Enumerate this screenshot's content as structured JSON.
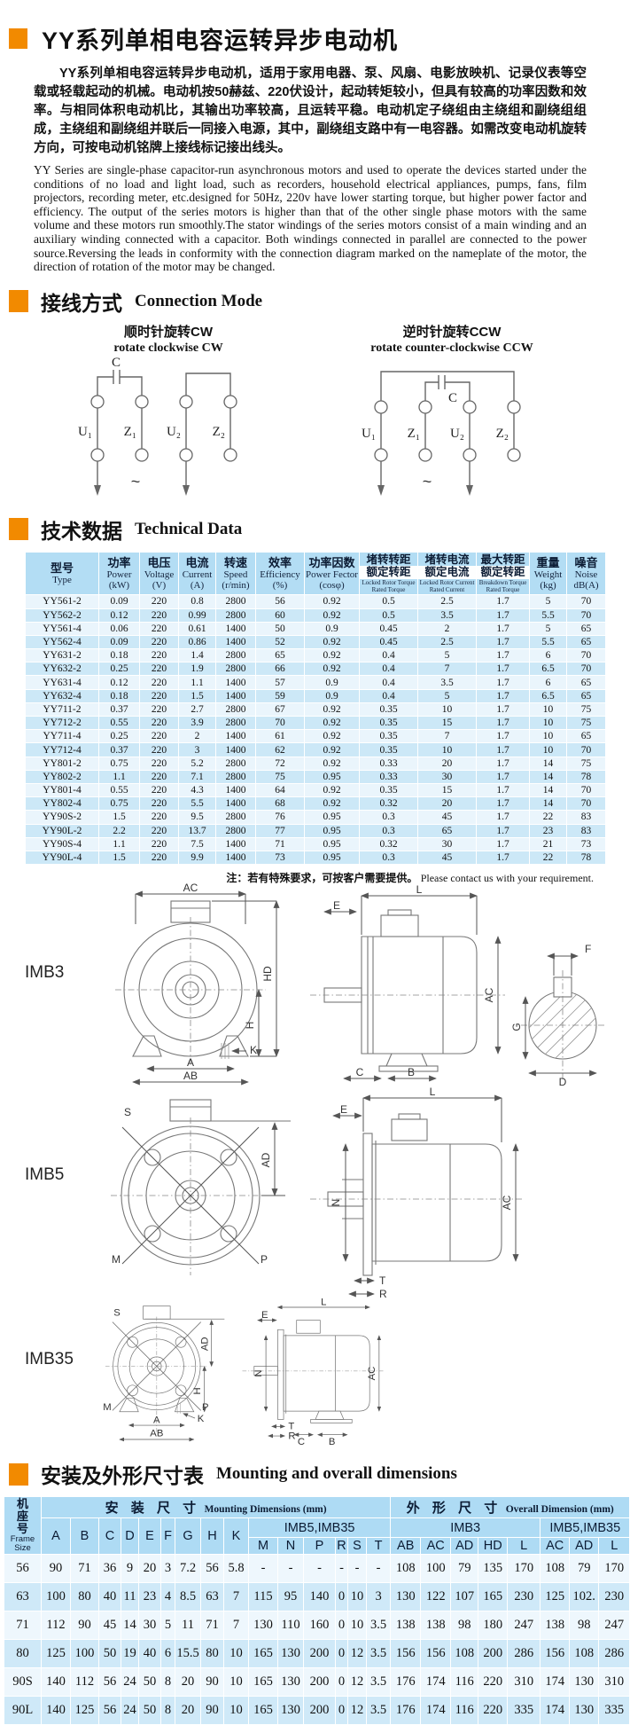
{
  "colors": {
    "accent_orange": "#f28a00",
    "table_header_blue": "#b3ddf4",
    "table_row_light": "#eaf5fc",
    "table_row_blue": "#cce8f7",
    "type_col_blue": "#a6d5ef"
  },
  "page": {
    "title": "YY系列单相电容运转异步电动机",
    "para_cn": "YY系列单相电容运转异步电动机，适用于家用电器、泵、风扇、电影放映机、记录仪表等空载或轻载起动的机械。电动机按50赫兹、220伏设计，起动转矩较小，但具有较高的功率因数和效率。与相同体积电动机比，其输出功率较高，且运转平稳。电动机定子绕组由主绕组和副绕组组成，主绕组和副绕组并联后一同接入电源，其中，副绕组支路中有一电容器。如需改变电动机旋转方向，可按电动机铭牌上接线标记接出线头。",
    "para_en": "YY Series are single-phase capacitor-run asynchronous motors and used to operate the devices started under the conditions of no load and light load, such as recorders, household electrical appliances, pumps, fans, film projectors, recording meter, etc.designed for 50Hz, 220v have lower starting torque, but higher power factor and efficiency. The output of the series motors is higher than that of the other single phase motors with the same volume and these motors run smoothly.The stator windings of the series motors consist of a main winding and an auxiliary winding connected with a capacitor. Both windings connected in parallel are connected to the power source.Reversing the leads in conformity with the connection diagram marked on the nameplate of the motor, the direction of rotation of the motor may be changed."
  },
  "sections": {
    "connection": {
      "cn": "接线方式",
      "en": "Connection Mode"
    },
    "technical": {
      "cn": "技术数据",
      "en": "Technical Data"
    },
    "mounting": {
      "cn": "安装及外形尺寸表",
      "en": "Mounting and overall dimensions"
    }
  },
  "connection": {
    "cw": {
      "caption_cn": "顺时针旋转CW",
      "caption_en": "rotate clockwise CW",
      "terminals": [
        "U₁",
        "Z₁",
        "U₂",
        "Z₂"
      ],
      "capacitor_label": "C",
      "ac_symbol": "~"
    },
    "ccw": {
      "caption_cn": "逆时针旋转CCW",
      "caption_en": "rotate counter-clockwise CCW",
      "terminals": [
        "U₁",
        "Z₁",
        "U₂",
        "Z₂"
      ],
      "capacitor_label": "C",
      "ac_symbol": "~"
    }
  },
  "tech_table": {
    "cols": [
      {
        "cn": "型号",
        "en": "Type"
      },
      {
        "cn": "功率",
        "en": "Power",
        "unit": "(kW)"
      },
      {
        "cn": "电压",
        "en": "Voltage",
        "unit": "(V)"
      },
      {
        "cn": "电流",
        "en": "Current",
        "unit": "(A)"
      },
      {
        "cn": "转速",
        "en": "Speed",
        "unit": "(r/min)"
      },
      {
        "cn": "效率",
        "en": "Efficiency",
        "unit": "(%)"
      },
      {
        "cn": "功率因数",
        "en": "Power Fector",
        "unit": "(cosφ)"
      },
      {
        "cn_top": "堵转转距",
        "cn_bot": "额定转距",
        "en_top": "Locked Rotor Torque",
        "en_bot": "Rated Torque"
      },
      {
        "cn_top": "堵转电流",
        "cn_bot": "额定电流",
        "en_top": "Locked Rotor Current",
        "en_bot": "Rated Current"
      },
      {
        "cn_top": "最大转距",
        "cn_bot": "额定转距",
        "en_top": "Breakdown Torque",
        "en_bot": "Rated Torque"
      },
      {
        "cn": "重量",
        "en": "Weight",
        "unit": "(kg)"
      },
      {
        "cn": "噪音",
        "en": "Noise",
        "unit": "dB(A)"
      }
    ],
    "rows": [
      [
        "YY561-2",
        "0.09",
        "220",
        "0.8",
        "2800",
        "56",
        "0.92",
        "0.5",
        "2.5",
        "1.7",
        "5",
        "70"
      ],
      [
        "YY562-2",
        "0.12",
        "220",
        "0.99",
        "2800",
        "60",
        "0.92",
        "0.5",
        "3.5",
        "1.7",
        "5.5",
        "70"
      ],
      [
        "YY561-4",
        "0.06",
        "220",
        "0.61",
        "1400",
        "50",
        "0.9",
        "0.45",
        "2",
        "1.7",
        "5",
        "65"
      ],
      [
        "YY562-4",
        "0.09",
        "220",
        "0.86",
        "1400",
        "52",
        "0.92",
        "0.45",
        "2.5",
        "1.7",
        "5.5",
        "65"
      ],
      [
        "YY631-2",
        "0.18",
        "220",
        "1.4",
        "2800",
        "65",
        "0.92",
        "0.4",
        "5",
        "1.7",
        "6",
        "70"
      ],
      [
        "YY632-2",
        "0.25",
        "220",
        "1.9",
        "2800",
        "66",
        "0.92",
        "0.4",
        "7",
        "1.7",
        "6.5",
        "70"
      ],
      [
        "YY631-4",
        "0.12",
        "220",
        "1.1",
        "1400",
        "57",
        "0.9",
        "0.4",
        "3.5",
        "1.7",
        "6",
        "65"
      ],
      [
        "YY632-4",
        "0.18",
        "220",
        "1.5",
        "1400",
        "59",
        "0.9",
        "0.4",
        "5",
        "1.7",
        "6.5",
        "65"
      ],
      [
        "YY711-2",
        "0.37",
        "220",
        "2.7",
        "2800",
        "67",
        "0.92",
        "0.35",
        "10",
        "1.7",
        "10",
        "75"
      ],
      [
        "YY712-2",
        "0.55",
        "220",
        "3.9",
        "2800",
        "70",
        "0.92",
        "0.35",
        "15",
        "1.7",
        "10",
        "75"
      ],
      [
        "YY711-4",
        "0.25",
        "220",
        "2",
        "1400",
        "61",
        "0.92",
        "0.35",
        "7",
        "1.7",
        "10",
        "65"
      ],
      [
        "YY712-4",
        "0.37",
        "220",
        "3",
        "1400",
        "62",
        "0.92",
        "0.35",
        "10",
        "1.7",
        "10",
        "70"
      ],
      [
        "YY801-2",
        "0.75",
        "220",
        "5.2",
        "2800",
        "72",
        "0.92",
        "0.33",
        "20",
        "1.7",
        "14",
        "75"
      ],
      [
        "YY802-2",
        "1.1",
        "220",
        "7.1",
        "2800",
        "75",
        "0.95",
        "0.33",
        "30",
        "1.7",
        "14",
        "78"
      ],
      [
        "YY801-4",
        "0.55",
        "220",
        "4.3",
        "1400",
        "64",
        "0.92",
        "0.35",
        "15",
        "1.7",
        "14",
        "70"
      ],
      [
        "YY802-4",
        "0.75",
        "220",
        "5.5",
        "1400",
        "68",
        "0.92",
        "0.32",
        "20",
        "1.7",
        "14",
        "70"
      ],
      [
        "YY90S-2",
        "1.5",
        "220",
        "9.5",
        "2800",
        "76",
        "0.95",
        "0.3",
        "45",
        "1.7",
        "22",
        "83"
      ],
      [
        "YY90L-2",
        "2.2",
        "220",
        "13.7",
        "2800",
        "77",
        "0.95",
        "0.3",
        "65",
        "1.7",
        "23",
        "83"
      ],
      [
        "YY90S-4",
        "1.1",
        "220",
        "7.5",
        "1400",
        "71",
        "0.95",
        "0.32",
        "30",
        "1.7",
        "21",
        "73"
      ],
      [
        "YY90L-4",
        "1.5",
        "220",
        "9.9",
        "1400",
        "73",
        "0.95",
        "0.3",
        "45",
        "1.7",
        "22",
        "78"
      ]
    ],
    "note_cn": "注：若有特殊要求，可按客户需要提供。",
    "note_en": "Please contact us with your requirement."
  },
  "diagrams": {
    "imb3": {
      "label": "IMB3",
      "front": {
        "ac": "AC",
        "hd": "HD",
        "h": "H",
        "k": "K",
        "a": "A",
        "ab": "AB"
      },
      "side": {
        "l": "L",
        "e": "E",
        "ac": "AC",
        "c": "C",
        "b": "B"
      },
      "shaft": {
        "f": "F",
        "g": "G",
        "d": "D"
      }
    },
    "imb5": {
      "label": "IMB5",
      "front": {
        "s": "S",
        "ad": "AD",
        "m": "M",
        "p": "P"
      },
      "side": {
        "l": "L",
        "e": "E",
        "n": "N",
        "ac": "AC",
        "t": "T",
        "r": "R"
      }
    },
    "imb35": {
      "label": "IMB35",
      "front": {
        "s": "S",
        "ad": "AD",
        "m": "M",
        "p": "P",
        "h": "H",
        "k": "K",
        "a": "A",
        "ab": "AB"
      },
      "side": {
        "l": "L",
        "e": "E",
        "n": "N",
        "ac": "AC",
        "t": "T",
        "r": "R",
        "c": "C",
        "b": "B"
      }
    }
  },
  "mount_table": {
    "frame_header": {
      "cn": "机座号",
      "en": "Frame Size"
    },
    "group_mounting": {
      "cn": "安 装 尺 寸",
      "en": "Mounting Dimensions (mm)"
    },
    "group_overall": {
      "cn": "外 形 尺 寸",
      "en": "Overall Dimension (mm)"
    },
    "sub_imb5a": "IMB5,IMB35",
    "sub_imb3": "IMB3",
    "sub_imb5b": "IMB5,IMB35",
    "cols_mount": [
      "A",
      "B",
      "C",
      "D",
      "E",
      "F",
      "G",
      "H",
      "K"
    ],
    "cols_mount2": [
      "M",
      "N",
      "P",
      "R",
      "S",
      "T"
    ],
    "cols_imb3": [
      "AB",
      "AC",
      "AD",
      "HD",
      "L"
    ],
    "cols_imb5": [
      "AC",
      "AD",
      "L"
    ],
    "rows": [
      [
        "56",
        "90",
        "71",
        "36",
        "9",
        "20",
        "3",
        "7.2",
        "56",
        "5.8",
        "-",
        "-",
        "-",
        "-",
        "-",
        "-",
        "108",
        "100",
        "79",
        "135",
        "170",
        "108",
        "79",
        "170"
      ],
      [
        "63",
        "100",
        "80",
        "40",
        "11",
        "23",
        "4",
        "8.5",
        "63",
        "7",
        "115",
        "95",
        "140",
        "0",
        "10",
        "3",
        "130",
        "122",
        "107",
        "165",
        "230",
        "125",
        "102.",
        "230"
      ],
      [
        "71",
        "112",
        "90",
        "45",
        "14",
        "30",
        "5",
        "11",
        "71",
        "7",
        "130",
        "110",
        "160",
        "0",
        "10",
        "3.5",
        "138",
        "138",
        "98",
        "180",
        "247",
        "138",
        "98",
        "247"
      ],
      [
        "80",
        "125",
        "100",
        "50",
        "19",
        "40",
        "6",
        "15.5",
        "80",
        "10",
        "165",
        "130",
        "200",
        "0",
        "12",
        "3.5",
        "156",
        "156",
        "108",
        "200",
        "286",
        "156",
        "108",
        "286"
      ],
      [
        "90S",
        "140",
        "112",
        "56",
        "24",
        "50",
        "8",
        "20",
        "90",
        "10",
        "165",
        "130",
        "200",
        "0",
        "12",
        "3.5",
        "176",
        "174",
        "116",
        "220",
        "310",
        "174",
        "130",
        "310"
      ],
      [
        "90L",
        "140",
        "125",
        "56",
        "24",
        "50",
        "8",
        "20",
        "90",
        "10",
        "165",
        "130",
        "200",
        "0",
        "12",
        "3.5",
        "176",
        "174",
        "116",
        "220",
        "335",
        "174",
        "130",
        "335"
      ]
    ]
  }
}
